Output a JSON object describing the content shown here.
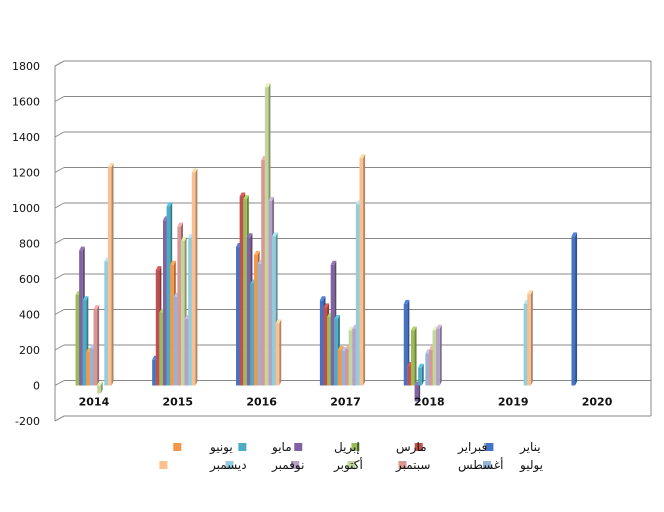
{
  "chart_data": {
    "type": "bar",
    "title": "",
    "xlabel": "",
    "ylabel": "",
    "ylim": [
      -200,
      1800
    ],
    "yticks": [
      -200,
      0,
      200,
      400,
      600,
      800,
      1000,
      1200,
      1400,
      1600,
      1800
    ],
    "grid": true,
    "legend_position": "bottom",
    "categories": [
      "2014",
      "2015",
      "2016",
      "2017",
      "2018",
      "2019",
      "2020"
    ],
    "series": [
      {
        "name": "يناير",
        "color": "#4472C4",
        "values": [
          0,
          145,
          780,
          480,
          460,
          0,
          840
        ]
      },
      {
        "name": "فبراير",
        "color": "#C0504D",
        "values": [
          0,
          650,
          1065,
          440,
          110,
          0,
          0
        ]
      },
      {
        "name": "مارس",
        "color": "#9BBB59",
        "values": [
          510,
          410,
          1050,
          385,
          310,
          0,
          0
        ]
      },
      {
        "name": "إبريل",
        "color": "#8064A2",
        "values": [
          760,
          930,
          835,
          680,
          -90,
          0,
          0
        ]
      },
      {
        "name": "مايو",
        "color": "#4BACC6",
        "values": [
          480,
          1010,
          575,
          375,
          100,
          0,
          0
        ]
      },
      {
        "name": "يونيو",
        "color": "#F79646",
        "values": [
          190,
          680,
          735,
          200,
          0,
          0,
          0
        ]
      },
      {
        "name": "يوليو",
        "color": "#95B3D7",
        "values": [
          210,
          500,
          685,
          195,
          180,
          0,
          0
        ]
      },
      {
        "name": "أغسطس",
        "color": "#D99694",
        "values": [
          430,
          895,
          1270,
          205,
          200,
          0,
          0
        ]
      },
      {
        "name": "سبتمبر",
        "color": "#C3D69B",
        "values": [
          -45,
          815,
          1680,
          310,
          310,
          0,
          0
        ]
      },
      {
        "name": "أكتوبر",
        "color": "#B3A2C7",
        "values": [
          0,
          375,
          1040,
          320,
          320,
          0,
          0
        ]
      },
      {
        "name": "نوفمبر",
        "color": "#93CDDD",
        "values": [
          700,
          830,
          840,
          1020,
          0,
          460,
          0
        ]
      },
      {
        "name": "ديسمبر",
        "color": "#FAC090",
        "values": [
          1230,
          1200,
          350,
          1280,
          0,
          515,
          0
        ]
      }
    ]
  }
}
